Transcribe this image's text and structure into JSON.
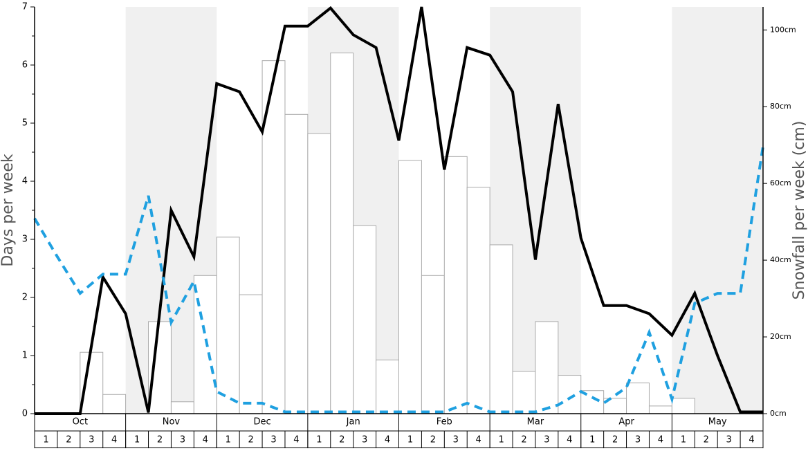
{
  "chart_data": {
    "type": "combo",
    "y_label": "Days per week",
    "y2_label": "Snowfall per week (cm)",
    "months": [
      "Oct",
      "Nov",
      "Dec",
      "Jan",
      "Feb",
      "Mar",
      "Apr",
      "May"
    ],
    "shaded_months": [
      false,
      true,
      false,
      true,
      false,
      true,
      false,
      true
    ],
    "categories": [
      "1",
      "2",
      "3",
      "4",
      "1",
      "2",
      "3",
      "4",
      "1",
      "2",
      "3",
      "4",
      "1",
      "2",
      "3",
      "4",
      "1",
      "2",
      "3",
      "4",
      "1",
      "2",
      "3",
      "4",
      "1",
      "2",
      "3",
      "4",
      "1",
      "2",
      "3",
      "4"
    ],
    "ylim": [
      0,
      7
    ],
    "yticks": [
      0,
      1,
      2,
      3,
      4,
      5,
      6,
      7
    ],
    "yminorticks": [
      0.5,
      1.5,
      2.5,
      3.5,
      4.5,
      5.5,
      6.5
    ],
    "y2lim": [
      0,
      106
    ],
    "y2ticks": [
      {
        "value": 0,
        "label": "0cm"
      },
      {
        "value": 20,
        "label": "20cm"
      },
      {
        "value": 40,
        "label": "40cm"
      },
      {
        "value": 60,
        "label": "60cm"
      },
      {
        "value": 80,
        "label": "80cm"
      },
      {
        "value": 100,
        "label": "100cm"
      }
    ],
    "xlim": [
      0,
      32
    ],
    "series": [
      {
        "type": "bar",
        "axis": "y2",
        "color": "#ffffff",
        "values": [
          0,
          0,
          16,
          5,
          0,
          24,
          3.1,
          36,
          46,
          31,
          92,
          78,
          73,
          94,
          49,
          14,
          66,
          36,
          67,
          59,
          44,
          11,
          24,
          10,
          6,
          4,
          8,
          2,
          4,
          0,
          0,
          0
        ]
      },
      {
        "type": "line",
        "axis": "y",
        "color": "#000000",
        "dashed": false,
        "x": [
          0,
          1,
          2,
          3,
          4,
          5,
          6,
          7,
          8,
          9,
          10,
          11,
          12,
          13,
          14,
          15,
          16,
          17,
          18,
          19,
          20,
          21,
          22,
          23,
          24,
          25,
          26,
          27,
          28,
          29,
          30,
          31,
          32
        ],
        "values": [
          0,
          0,
          0,
          2.35,
          1.72,
          0.02,
          3.5,
          2.7,
          5.68,
          5.54,
          4.85,
          6.67,
          6.67,
          6.98,
          6.52,
          6.3,
          4.7,
          7.0,
          4.2,
          6.3,
          6.17,
          5.54,
          2.65,
          5.33,
          3.02,
          1.86,
          1.86,
          1.72,
          1.35,
          2.07,
          1.0,
          0.03,
          0.03
        ]
      },
      {
        "type": "line",
        "axis": "y",
        "color": "#1fa0e0",
        "dashed": true,
        "x": [
          0,
          1,
          2,
          3,
          4,
          5,
          6,
          7,
          8,
          9,
          10,
          11,
          12,
          13,
          14,
          15,
          16,
          17,
          18,
          19,
          20,
          21,
          22,
          23,
          24,
          25,
          26,
          27,
          28,
          29,
          30,
          31,
          32
        ],
        "values": [
          3.36,
          2.7,
          2.07,
          2.4,
          2.4,
          3.75,
          1.57,
          2.28,
          0.38,
          0.18,
          0.18,
          0.03,
          0.03,
          0.03,
          0.03,
          0.03,
          0.03,
          0.03,
          0.03,
          0.18,
          0.03,
          0.03,
          0.03,
          0.15,
          0.38,
          0.18,
          0.45,
          1.4,
          0.25,
          1.9,
          2.07,
          2.07,
          4.6
        ]
      }
    ]
  }
}
